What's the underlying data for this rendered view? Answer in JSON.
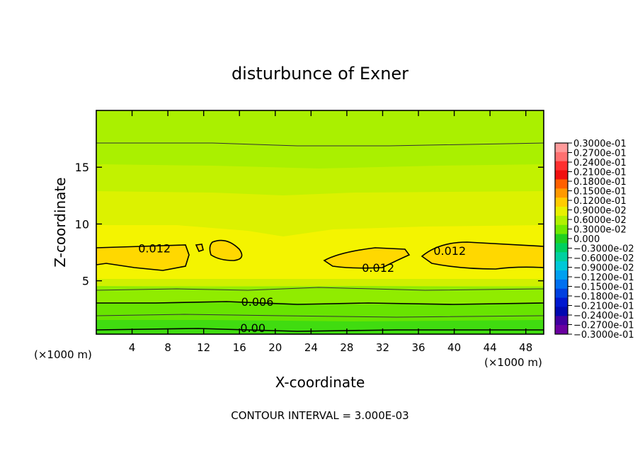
{
  "chart_data": {
    "type": "contour",
    "title": "disturbunce of Exner",
    "xlabel": "X-coordinate",
    "ylabel": "Z-coordinate",
    "x_unit_left": "(×1000 m)",
    "x_unit_right": "(×1000 m)",
    "xlim": [
      0,
      50
    ],
    "ylim": [
      0.3,
      20
    ],
    "x_ticks": [
      4,
      8,
      12,
      16,
      20,
      24,
      28,
      32,
      36,
      40,
      44,
      48
    ],
    "x_tick_labels": [
      "4",
      "8",
      "12",
      "16",
      "20",
      "24",
      "28",
      "32",
      "36",
      "40",
      "44",
      "48"
    ],
    "y_ticks": [
      5,
      10,
      15
    ],
    "y_tick_labels": [
      "5",
      "10",
      "15"
    ],
    "footer": "CONTOUR INTERVAL = 3.000E-03",
    "contour_labels": [
      {
        "text": "0.012",
        "x": 6.5,
        "y": 7.8
      },
      {
        "text": "0.012",
        "x": 31.5,
        "y": 6.1
      },
      {
        "text": "0.012",
        "x": 39.5,
        "y": 7.6
      },
      {
        "text": "0.006",
        "x": 18.0,
        "y": 3.1
      },
      {
        "text": "0.00",
        "x": 17.5,
        "y": 0.8
      }
    ],
    "colorbar": {
      "labels": [
        "0.3000e-01",
        "0.2700e-01",
        "0.2400e-01",
        "0.2100e-01",
        "0.1800e-01",
        "0.1500e-01",
        "0.1200e-01",
        "0.9000e-02",
        "0.6000e-02",
        "0.3000e-02",
        "0.000",
        "−0.3000e-02",
        "−0.6000e-02",
        "−0.9000e-02",
        "−0.1200e-01",
        "−0.1500e-01",
        "−0.1800e-01",
        "−0.2100e-01",
        "−0.2400e-01",
        "−0.2700e-01",
        "−0.3000e-01"
      ],
      "colors": [
        "#ff9a9a",
        "#ff7070",
        "#ff3030",
        "#f01010",
        "#ff6000",
        "#ff9900",
        "#ffcc00",
        "#e8f000",
        "#b0f000",
        "#70e800",
        "#20d020",
        "#00d060",
        "#00d0a0",
        "#00c8d8",
        "#00a0f0",
        "#0070f0",
        "#0040e0",
        "#0018d0",
        "#0008b0",
        "#4000a0",
        "#6a00a0"
      ]
    }
  }
}
